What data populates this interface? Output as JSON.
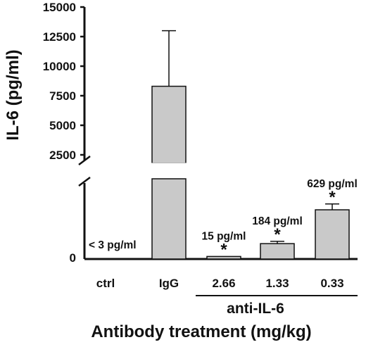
{
  "chart_data": {
    "type": "bar",
    "ylabel": "IL-6 (pg/ml)",
    "xlabel": "Antibody treatment (mg/kg)",
    "group_label": "anti-IL-6",
    "y_axis_upper_ticks": [
      "15000",
      "12500",
      "10000",
      "7500",
      "5000",
      "2500"
    ],
    "y_axis_lower_ticks": [
      "0"
    ],
    "y_axis_break": true,
    "ylim_upper": [
      2500,
      15000
    ],
    "ylim_lower": [
      0,
      1000
    ],
    "categories": [
      "ctrl",
      "IgG",
      "2.66",
      "1.33",
      "0.33"
    ],
    "values": [
      0,
      8300,
      15,
      184,
      629
    ],
    "errors": [
      0,
      4700,
      0,
      30,
      77
    ],
    "bar_labels": [
      "< 3 pg/ml",
      "",
      "15 pg/ml",
      "184 pg/ml",
      "629 pg/ml"
    ],
    "significance": [
      "",
      "",
      "*",
      "*",
      "*"
    ],
    "bar_color": "#c9c9c9",
    "grid": false
  }
}
